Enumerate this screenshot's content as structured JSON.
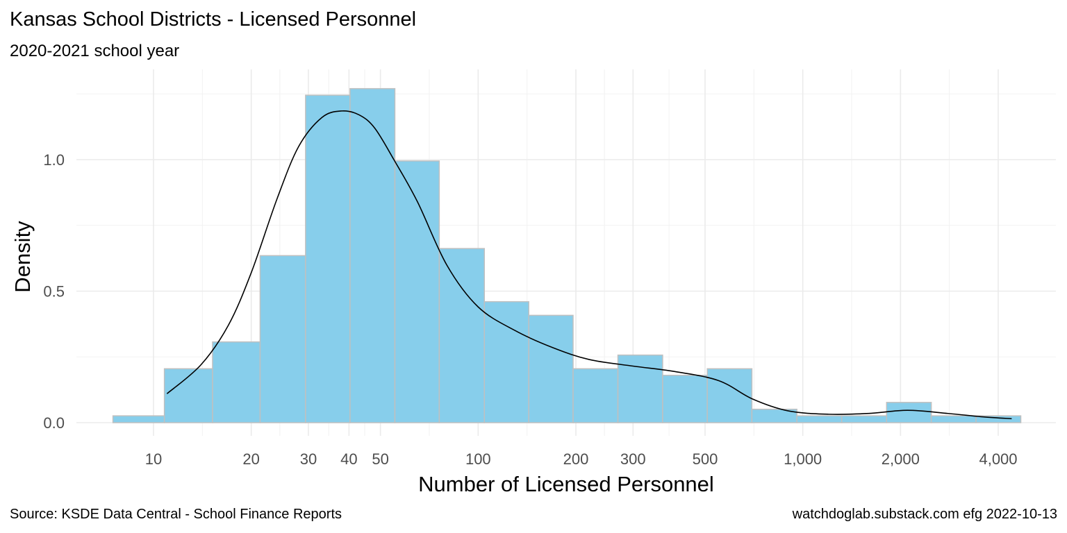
{
  "chart_data": {
    "type": "histogram",
    "title": "Kansas School Districts - Licensed Personnel",
    "subtitle": "2020-2021 school year",
    "xlabel": "Number of Licensed Personnel",
    "ylabel": "Density",
    "x_scale": "log10",
    "xlim": [
      6.5,
      5000
    ],
    "ylim": [
      0,
      1.28
    ],
    "x_ticks": [
      10,
      20,
      30,
      40,
      50,
      100,
      200,
      300,
      500,
      1000,
      2000,
      4000
    ],
    "x_tick_labels": [
      "10",
      "20",
      "30",
      "40",
      "50",
      "100",
      "200",
      "300",
      "500",
      "1,000",
      "2,000",
      "4,000"
    ],
    "y_ticks": [
      0,
      0.5,
      1.0
    ],
    "y_tick_labels": [
      "0.0",
      "0.5",
      "1.0"
    ],
    "bins": [
      {
        "x0": 7.5,
        "x1": 10.8,
        "density": 0.026
      },
      {
        "x0": 10.8,
        "x1": 15.2,
        "density": 0.205
      },
      {
        "x0": 15.2,
        "x1": 21.3,
        "density": 0.307
      },
      {
        "x0": 21.3,
        "x1": 29.4,
        "density": 0.635
      },
      {
        "x0": 29.4,
        "x1": 40.3,
        "density": 1.245
      },
      {
        "x0": 40.3,
        "x1": 55.4,
        "density": 1.27
      },
      {
        "x0": 55.4,
        "x1": 75.9,
        "density": 0.995
      },
      {
        "x0": 75.9,
        "x1": 104.5,
        "density": 0.662
      },
      {
        "x0": 104.5,
        "x1": 143.2,
        "density": 0.46
      },
      {
        "x0": 143.2,
        "x1": 196.1,
        "density": 0.408
      },
      {
        "x0": 196.1,
        "x1": 269.5,
        "density": 0.205
      },
      {
        "x0": 269.5,
        "x1": 370.1,
        "density": 0.257
      },
      {
        "x0": 370.1,
        "x1": 508.0,
        "density": 0.18
      },
      {
        "x0": 508.0,
        "x1": 697.0,
        "density": 0.205
      },
      {
        "x0": 697.0,
        "x1": 959.0,
        "density": 0.051
      },
      {
        "x0": 959.0,
        "x1": 1318.0,
        "density": 0.026
      },
      {
        "x0": 1318.0,
        "x1": 1812.0,
        "density": 0.026
      },
      {
        "x0": 1812.0,
        "x1": 2488.0,
        "density": 0.077
      },
      {
        "x0": 2488.0,
        "x1": 3418.0,
        "density": 0.026
      },
      {
        "x0": 3418.0,
        "x1": 4695.0,
        "density": 0.026
      }
    ],
    "density_curve": {
      "x": [
        11,
        14,
        17,
        20,
        24,
        28,
        33,
        38,
        43,
        48,
        55,
        65,
        80,
        100,
        130,
        170,
        220,
        300,
        400,
        550,
        700,
        900,
        1200,
        1600,
        2100,
        2800,
        3600,
        4400
      ],
      "y": [
        0.11,
        0.22,
        0.37,
        0.57,
        0.85,
        1.05,
        1.16,
        1.185,
        1.17,
        1.12,
        1.0,
        0.84,
        0.6,
        0.44,
        0.35,
        0.285,
        0.24,
        0.215,
        0.195,
        0.16,
        0.09,
        0.045,
        0.032,
        0.035,
        0.047,
        0.035,
        0.022,
        0.015
      ]
    },
    "bar_fill": "#87CEEB",
    "bar_stroke": "#c0c0c0",
    "curve_color": "#000000",
    "grid": true
  },
  "caption": {
    "source": "Source:  KSDE Data Central - School Finance Reports",
    "credit": "watchdoglab.substack.com  efg 2022-10-13"
  }
}
